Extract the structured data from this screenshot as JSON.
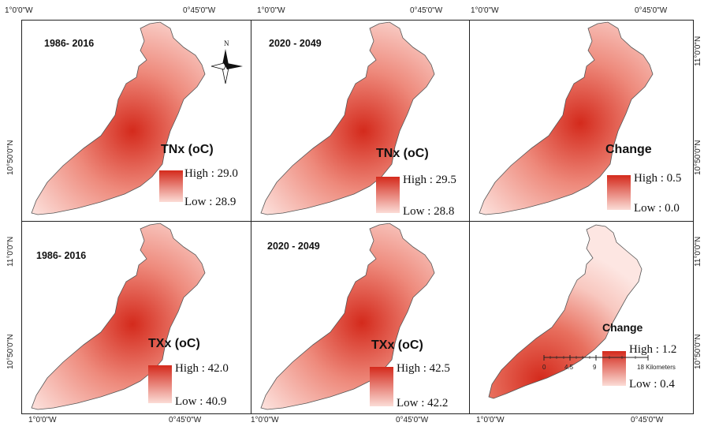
{
  "axes": {
    "top": [
      "1°0'0\"W",
      "0°45'0\"W",
      "1°0'0\"W",
      "0°45'0\"W",
      "1°0'0\"W",
      "0°45'0\"W"
    ],
    "bottom": [
      "1°0'0\"W",
      "0°45'0\"W",
      "1°0'0\"W",
      "0°45'0\"W",
      "1°0'0\"W",
      "0°45'0\"W"
    ],
    "left": [
      "10°50'0\"N",
      "11°0'0\"N",
      "10°50'0\"N"
    ],
    "right": [
      "11°0'0\"N",
      "10°50'0\"N",
      "11°0'0\"N",
      "10°50'0\"N"
    ]
  },
  "north_label": "N",
  "panels": [
    {
      "period": "1986- 2016",
      "variable": "TNx (oC)",
      "high": "High : 29.0",
      "low": "Low : 28.9",
      "shading": "warm-north"
    },
    {
      "period": "2020 - 2049",
      "variable": "TNx (oC)",
      "high": "High : 29.5",
      "low": "Low : 28.8",
      "shading": "warm-north"
    },
    {
      "period": "",
      "variable": "Change",
      "high": "High : 0.5",
      "low": "Low : 0.0",
      "shading": "warm-north"
    },
    {
      "period": "1986- 2016",
      "variable": "TXx (oC)",
      "high": "High : 42.0",
      "low": "Low : 40.9",
      "shading": "warm-north"
    },
    {
      "period": "2020 - 2049",
      "variable": "TXx (oC)",
      "high": "High : 42.5",
      "low": "Low : 42.2",
      "shading": "warm-north"
    },
    {
      "period": "",
      "variable": "Change",
      "high": "High : 1.2",
      "low": "Low : 0.4",
      "shading": "warm-south"
    }
  ],
  "scale": {
    "ticks": [
      "0",
      "4.5",
      "9",
      "18 Kilometers"
    ]
  },
  "colors": {
    "high": "#d42a1c",
    "low": "#fbdcd6",
    "mid": "#ee8a7c",
    "frame": "#222222"
  }
}
